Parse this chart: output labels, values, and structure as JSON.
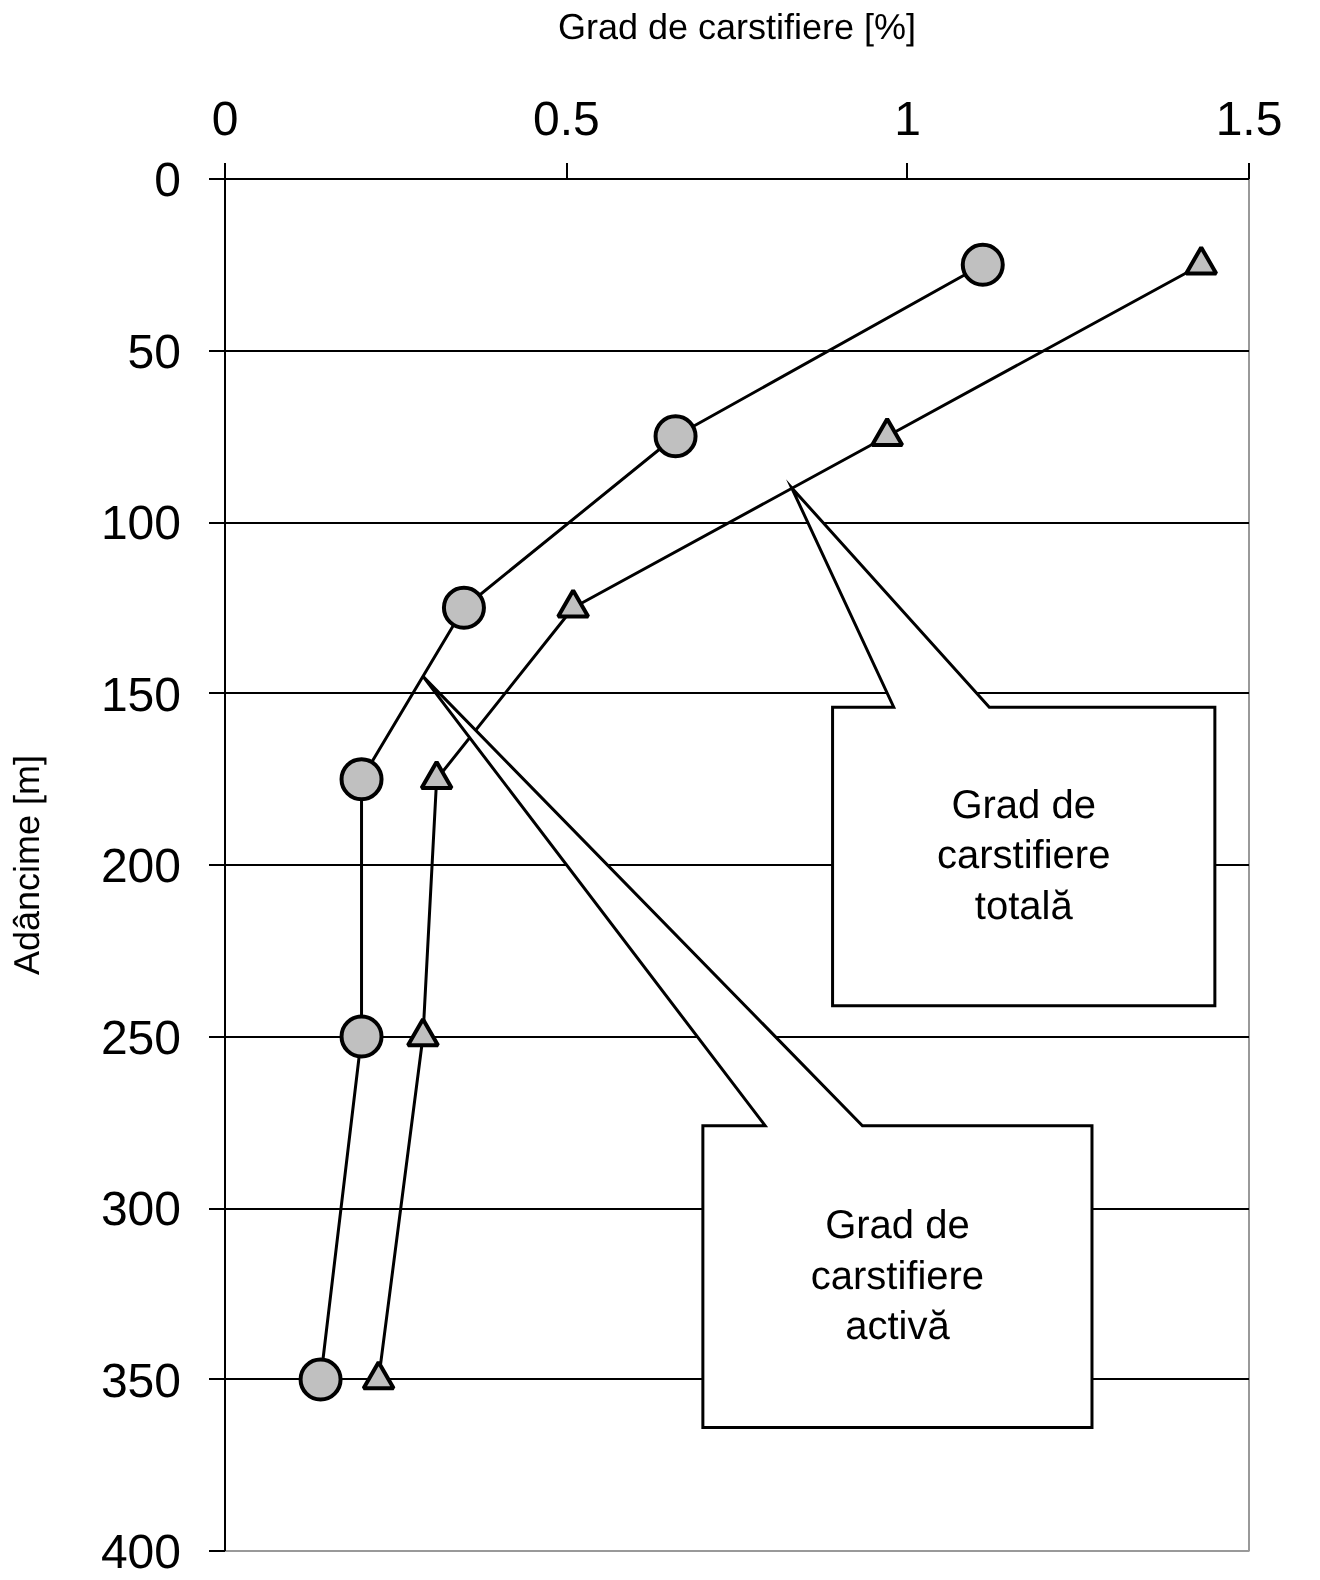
{
  "chart_data": {
    "type": "line",
    "xlabel": "Grad de carstifiere [%]",
    "ylabel": "Adâncime [m]",
    "xlim": [
      0,
      1.5
    ],
    "xticks": [
      0,
      0.5,
      1,
      1.5
    ],
    "ylim": [
      400,
      0
    ],
    "yticks": [
      0,
      50,
      100,
      150,
      200,
      250,
      300,
      350,
      400
    ],
    "grid": "y",
    "series": [
      {
        "color": "#c0c0c0",
        "marker": "circle",
        "x": [
          1.11,
          0.66,
          0.35,
          0.2,
          0.2,
          0.14
        ],
        "values": [
          25,
          75,
          125,
          175,
          250,
          350
        ]
      },
      {
        "color": "#c0c0c0",
        "marker": "triangle",
        "x": [
          1.43,
          0.97,
          0.51,
          0.31,
          0.29,
          0.225
        ],
        "values": [
          25,
          75,
          125,
          175,
          250,
          350
        ]
      }
    ],
    "annotations": [
      "Grad de carstifiere totală",
      "Grad de carstifiere activă"
    ]
  }
}
